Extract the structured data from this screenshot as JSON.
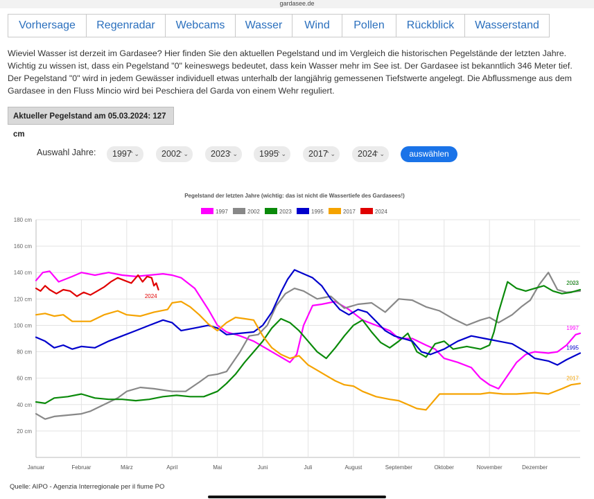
{
  "browser": {
    "url": "gardasee.de"
  },
  "nav": [
    {
      "label": "Vorhersage"
    },
    {
      "label": "Regenradar"
    },
    {
      "label": "Webcams"
    },
    {
      "label": "Wasser"
    },
    {
      "label": "Wind"
    },
    {
      "label": "Pollen"
    },
    {
      "label": "Rückblick"
    },
    {
      "label": "Wasserstand"
    }
  ],
  "intro": "Wieviel Wasser ist derzeit im Gardasee? Hier finden Sie den aktuellen Pegelstand und im Vergleich die historischen Pegelstände der letzten Jahre. Wichtig zu wissen ist, dass ein Pegelstand \"0\" keineswegs bedeutet, dass kein Wasser mehr im See ist. Der Gardasee ist bekanntlich 346 Meter tief. Der Pegelstand \"0\" wird in jedem Gewässer individuell etwas unterhalb der langjährig gemessenen Tiefstwerte angelegt. Die Abflussmenge aus dem Gardasee in den Fluss Mincio wird bei Peschiera del Garda von einem Wehr reguliert.",
  "current_level": "Aktueller Pegelstand am 05.03.2024: 127 cm",
  "year_selection": {
    "label": "Auswahl Jahre:",
    "selects": [
      "1997",
      "2002",
      "2023",
      "1995",
      "2017",
      "2024"
    ],
    "button": "auswählen"
  },
  "source": "Quelle: AIPO - Agenzia Interregionale per il fiume PO",
  "chart_data": {
    "type": "line",
    "title": "Pegelstand der letzten Jahre (wichtig: das ist nicht die Wassertiefe des Gardasees!)",
    "ylim": [
      0,
      180
    ],
    "yticks": [
      20,
      40,
      60,
      80,
      100,
      120,
      140,
      160,
      180
    ],
    "ytick_labels": [
      "20 cm",
      "40 cm",
      "60 cm",
      "80 cm",
      "100 cm",
      "120 cm",
      "140 cm",
      "160 cm",
      "180 cm"
    ],
    "xlim": [
      0,
      12
    ],
    "months": [
      "Januar",
      "Februar",
      "März",
      "April",
      "Mai",
      "Juni",
      "Juli",
      "August",
      "September",
      "Oktober",
      "November",
      "Dezember"
    ],
    "grid": true,
    "legend_position": "top",
    "series": [
      {
        "name": "1997",
        "color": "#ff00ff",
        "end_label": "1997",
        "x": [
          0,
          0.15,
          0.3,
          0.5,
          0.8,
          1.0,
          1.3,
          1.6,
          1.9,
          2.2,
          2.5,
          2.8,
          3.0,
          3.2,
          3.5,
          3.8,
          4.0,
          4.2,
          4.5,
          4.8,
          5.0,
          5.2,
          5.45,
          5.6,
          5.75,
          5.9,
          6.1,
          6.3,
          6.6,
          6.9,
          7.2,
          7.5,
          7.8,
          8.0,
          8.3,
          8.6,
          8.8,
          9.0,
          9.3,
          9.6,
          9.8,
          10.0,
          10.2,
          10.4,
          10.6,
          10.8,
          11.0,
          11.3,
          11.5,
          11.7,
          11.9,
          12.0
        ],
        "values": [
          134,
          140,
          141,
          133,
          137,
          140,
          138,
          140,
          138,
          137,
          138,
          139,
          138,
          136,
          128,
          112,
          100,
          95,
          92,
          88,
          84,
          80,
          75,
          72,
          78,
          100,
          115,
          116,
          118,
          112,
          104,
          100,
          96,
          90,
          90,
          85,
          82,
          75,
          72,
          68,
          60,
          55,
          52,
          62,
          72,
          78,
          80,
          79,
          80,
          85,
          93,
          94
        ]
      },
      {
        "name": "2002",
        "color": "#888888",
        "end_label": "2002",
        "x": [
          0,
          0.2,
          0.4,
          0.7,
          1.0,
          1.2,
          1.5,
          1.8,
          2.0,
          2.3,
          2.6,
          3.0,
          3.3,
          3.6,
          3.8,
          4.0,
          4.2,
          4.5,
          4.7,
          4.9,
          5.1,
          5.3,
          5.5,
          5.7,
          5.9,
          6.2,
          6.5,
          6.8,
          7.1,
          7.4,
          7.7,
          8.0,
          8.3,
          8.6,
          8.9,
          9.2,
          9.5,
          9.8,
          10.0,
          10.2,
          10.5,
          10.7,
          10.9,
          11.1,
          11.3,
          11.5,
          11.7,
          12.0
        ],
        "values": [
          33,
          29,
          31,
          32,
          33,
          35,
          40,
          45,
          50,
          53,
          52,
          50,
          50,
          57,
          62,
          63,
          65,
          80,
          92,
          93,
          100,
          115,
          124,
          128,
          126,
          120,
          122,
          113,
          116,
          117,
          110,
          120,
          119,
          114,
          111,
          105,
          100,
          104,
          106,
          102,
          108,
          114,
          119,
          131,
          140,
          127,
          125,
          126
        ]
      },
      {
        "name": "2023",
        "color": "#0a8a0a",
        "end_label": "2023",
        "x": [
          0,
          0.2,
          0.4,
          0.7,
          1.0,
          1.3,
          1.6,
          1.9,
          2.2,
          2.5,
          2.8,
          3.1,
          3.4,
          3.7,
          4.0,
          4.2,
          4.4,
          4.6,
          4.8,
          5.0,
          5.2,
          5.4,
          5.6,
          5.8,
          6.0,
          6.2,
          6.4,
          6.6,
          6.8,
          7.0,
          7.2,
          7.4,
          7.6,
          7.8,
          8.0,
          8.2,
          8.4,
          8.6,
          8.8,
          9.0,
          9.2,
          9.5,
          9.8,
          10.0,
          10.1,
          10.2,
          10.4,
          10.6,
          10.8,
          11.0,
          11.2,
          11.4,
          11.6,
          11.8,
          12.0
        ],
        "values": [
          42,
          41,
          45,
          46,
          48,
          45,
          44,
          44,
          43,
          44,
          46,
          47,
          46,
          46,
          50,
          56,
          63,
          72,
          80,
          88,
          98,
          105,
          102,
          96,
          88,
          80,
          75,
          83,
          92,
          100,
          104,
          95,
          87,
          83,
          88,
          94,
          80,
          76,
          86,
          88,
          82,
          84,
          82,
          85,
          95,
          110,
          133,
          128,
          126,
          128,
          130,
          126,
          124,
          125,
          127
        ]
      },
      {
        "name": "1995",
        "color": "#0000cc",
        "end_label": "1995",
        "x": [
          0,
          0.2,
          0.4,
          0.6,
          0.8,
          1.0,
          1.3,
          1.6,
          1.9,
          2.2,
          2.5,
          2.8,
          3.0,
          3.2,
          3.5,
          3.8,
          4.0,
          4.2,
          4.5,
          4.8,
          5.0,
          5.2,
          5.4,
          5.55,
          5.7,
          5.9,
          6.1,
          6.3,
          6.5,
          6.7,
          6.9,
          7.1,
          7.3,
          7.5,
          7.7,
          7.9,
          8.1,
          8.3,
          8.5,
          8.7,
          9.0,
          9.3,
          9.6,
          9.9,
          10.2,
          10.5,
          10.8,
          11.0,
          11.3,
          11.5,
          11.7,
          12.0
        ],
        "values": [
          91,
          88,
          83,
          85,
          82,
          84,
          83,
          88,
          92,
          96,
          100,
          104,
          102,
          96,
          98,
          100,
          98,
          93,
          94,
          95,
          100,
          110,
          125,
          135,
          142,
          139,
          136,
          130,
          120,
          112,
          108,
          112,
          110,
          103,
          96,
          92,
          90,
          88,
          80,
          78,
          82,
          88,
          92,
          90,
          88,
          86,
          80,
          75,
          73,
          70,
          74,
          79
        ]
      },
      {
        "name": "2017",
        "color": "#f5a300",
        "end_label": "2017",
        "x": [
          0,
          0.2,
          0.4,
          0.6,
          0.8,
          1.0,
          1.2,
          1.5,
          1.8,
          2.0,
          2.3,
          2.6,
          2.9,
          3.0,
          3.2,
          3.4,
          3.6,
          3.8,
          4.0,
          4.2,
          4.4,
          4.6,
          4.8,
          5.0,
          5.2,
          5.4,
          5.6,
          5.8,
          6.0,
          6.2,
          6.4,
          6.6,
          6.8,
          7.0,
          7.2,
          7.5,
          7.8,
          8.0,
          8.2,
          8.4,
          8.6,
          8.7,
          8.9,
          9.2,
          9.5,
          9.8,
          10.0,
          10.3,
          10.6,
          11.0,
          11.3,
          11.6,
          11.8,
          12.0
        ],
        "values": [
          108,
          109,
          107,
          108,
          103,
          103,
          103,
          108,
          111,
          108,
          107,
          110,
          112,
          117,
          118,
          114,
          108,
          101,
          96,
          102,
          106,
          105,
          104,
          92,
          83,
          78,
          75,
          77,
          70,
          66,
          62,
          58,
          55,
          54,
          50,
          46,
          44,
          43,
          40,
          37,
          36,
          40,
          48,
          48,
          48,
          48,
          49,
          48,
          48,
          49,
          48,
          52,
          55,
          56
        ]
      },
      {
        "name": "2024",
        "color": "#e00000",
        "end_label": "2024",
        "x": [
          0,
          0.1,
          0.2,
          0.3,
          0.45,
          0.6,
          0.75,
          0.9,
          1.05,
          1.2,
          1.35,
          1.5,
          1.65,
          1.8,
          1.95,
          2.1,
          2.25,
          2.35,
          2.45,
          2.55,
          2.6,
          2.65,
          2.7
        ],
        "values": [
          128,
          126,
          130,
          127,
          124,
          127,
          126,
          122,
          125,
          123,
          126,
          129,
          133,
          136,
          134,
          132,
          138,
          133,
          137,
          136,
          130,
          132,
          127
        ]
      }
    ]
  }
}
